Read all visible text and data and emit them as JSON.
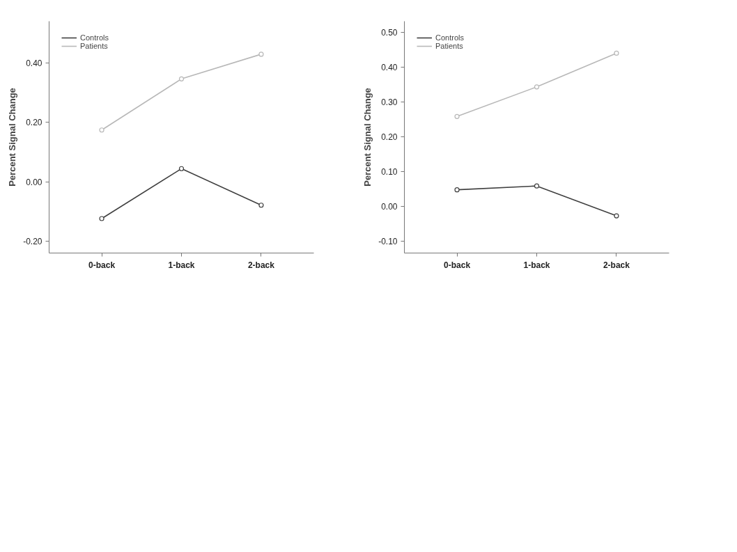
{
  "chart_data": [
    {
      "type": "line",
      "ylabel": "Percent Signal Change",
      "categories": [
        "0-back",
        "1-back",
        "2-back"
      ],
      "ylim": [
        -0.24,
        0.54
      ],
      "yticks": [
        {
          "value": -0.2,
          "label": "-0.20"
        },
        {
          "value": 0.0,
          "label": "0.00"
        },
        {
          "value": 0.2,
          "label": "0.20"
        },
        {
          "value": 0.4,
          "label": "0.40"
        }
      ],
      "grid": false,
      "legend": "top left",
      "marker": "circle",
      "line_style": "solid",
      "series": [
        {
          "name": "Controls",
          "color": "#404040",
          "values": [
            -0.124,
            0.044,
            -0.079
          ]
        },
        {
          "name": "Patients",
          "color": "#b8b8b8",
          "values": [
            0.174,
            0.346,
            0.429
          ]
        }
      ]
    },
    {
      "type": "line",
      "ylabel": "Percent Signal Change",
      "categories": [
        "0-back",
        "1-back",
        "2-back"
      ],
      "ylim": [
        -0.134,
        0.533
      ],
      "yticks": [
        {
          "value": -0.1,
          "label": "-0.10"
        },
        {
          "value": 0.0,
          "label": "0.00"
        },
        {
          "value": 0.1,
          "label": "0.10"
        },
        {
          "value": 0.2,
          "label": "0.20"
        },
        {
          "value": 0.3,
          "label": "0.30"
        },
        {
          "value": 0.4,
          "label": "0.40"
        },
        {
          "value": 0.5,
          "label": "0.50"
        }
      ],
      "grid": false,
      "legend": "top left",
      "marker": "circle",
      "line_style": "solid",
      "series": [
        {
          "name": "Controls",
          "color": "#404040",
          "values": [
            0.048,
            0.059,
            -0.027
          ]
        },
        {
          "name": "Patients",
          "color": "#b8b8b8",
          "values": [
            0.259,
            0.344,
            0.441
          ]
        }
      ]
    }
  ]
}
